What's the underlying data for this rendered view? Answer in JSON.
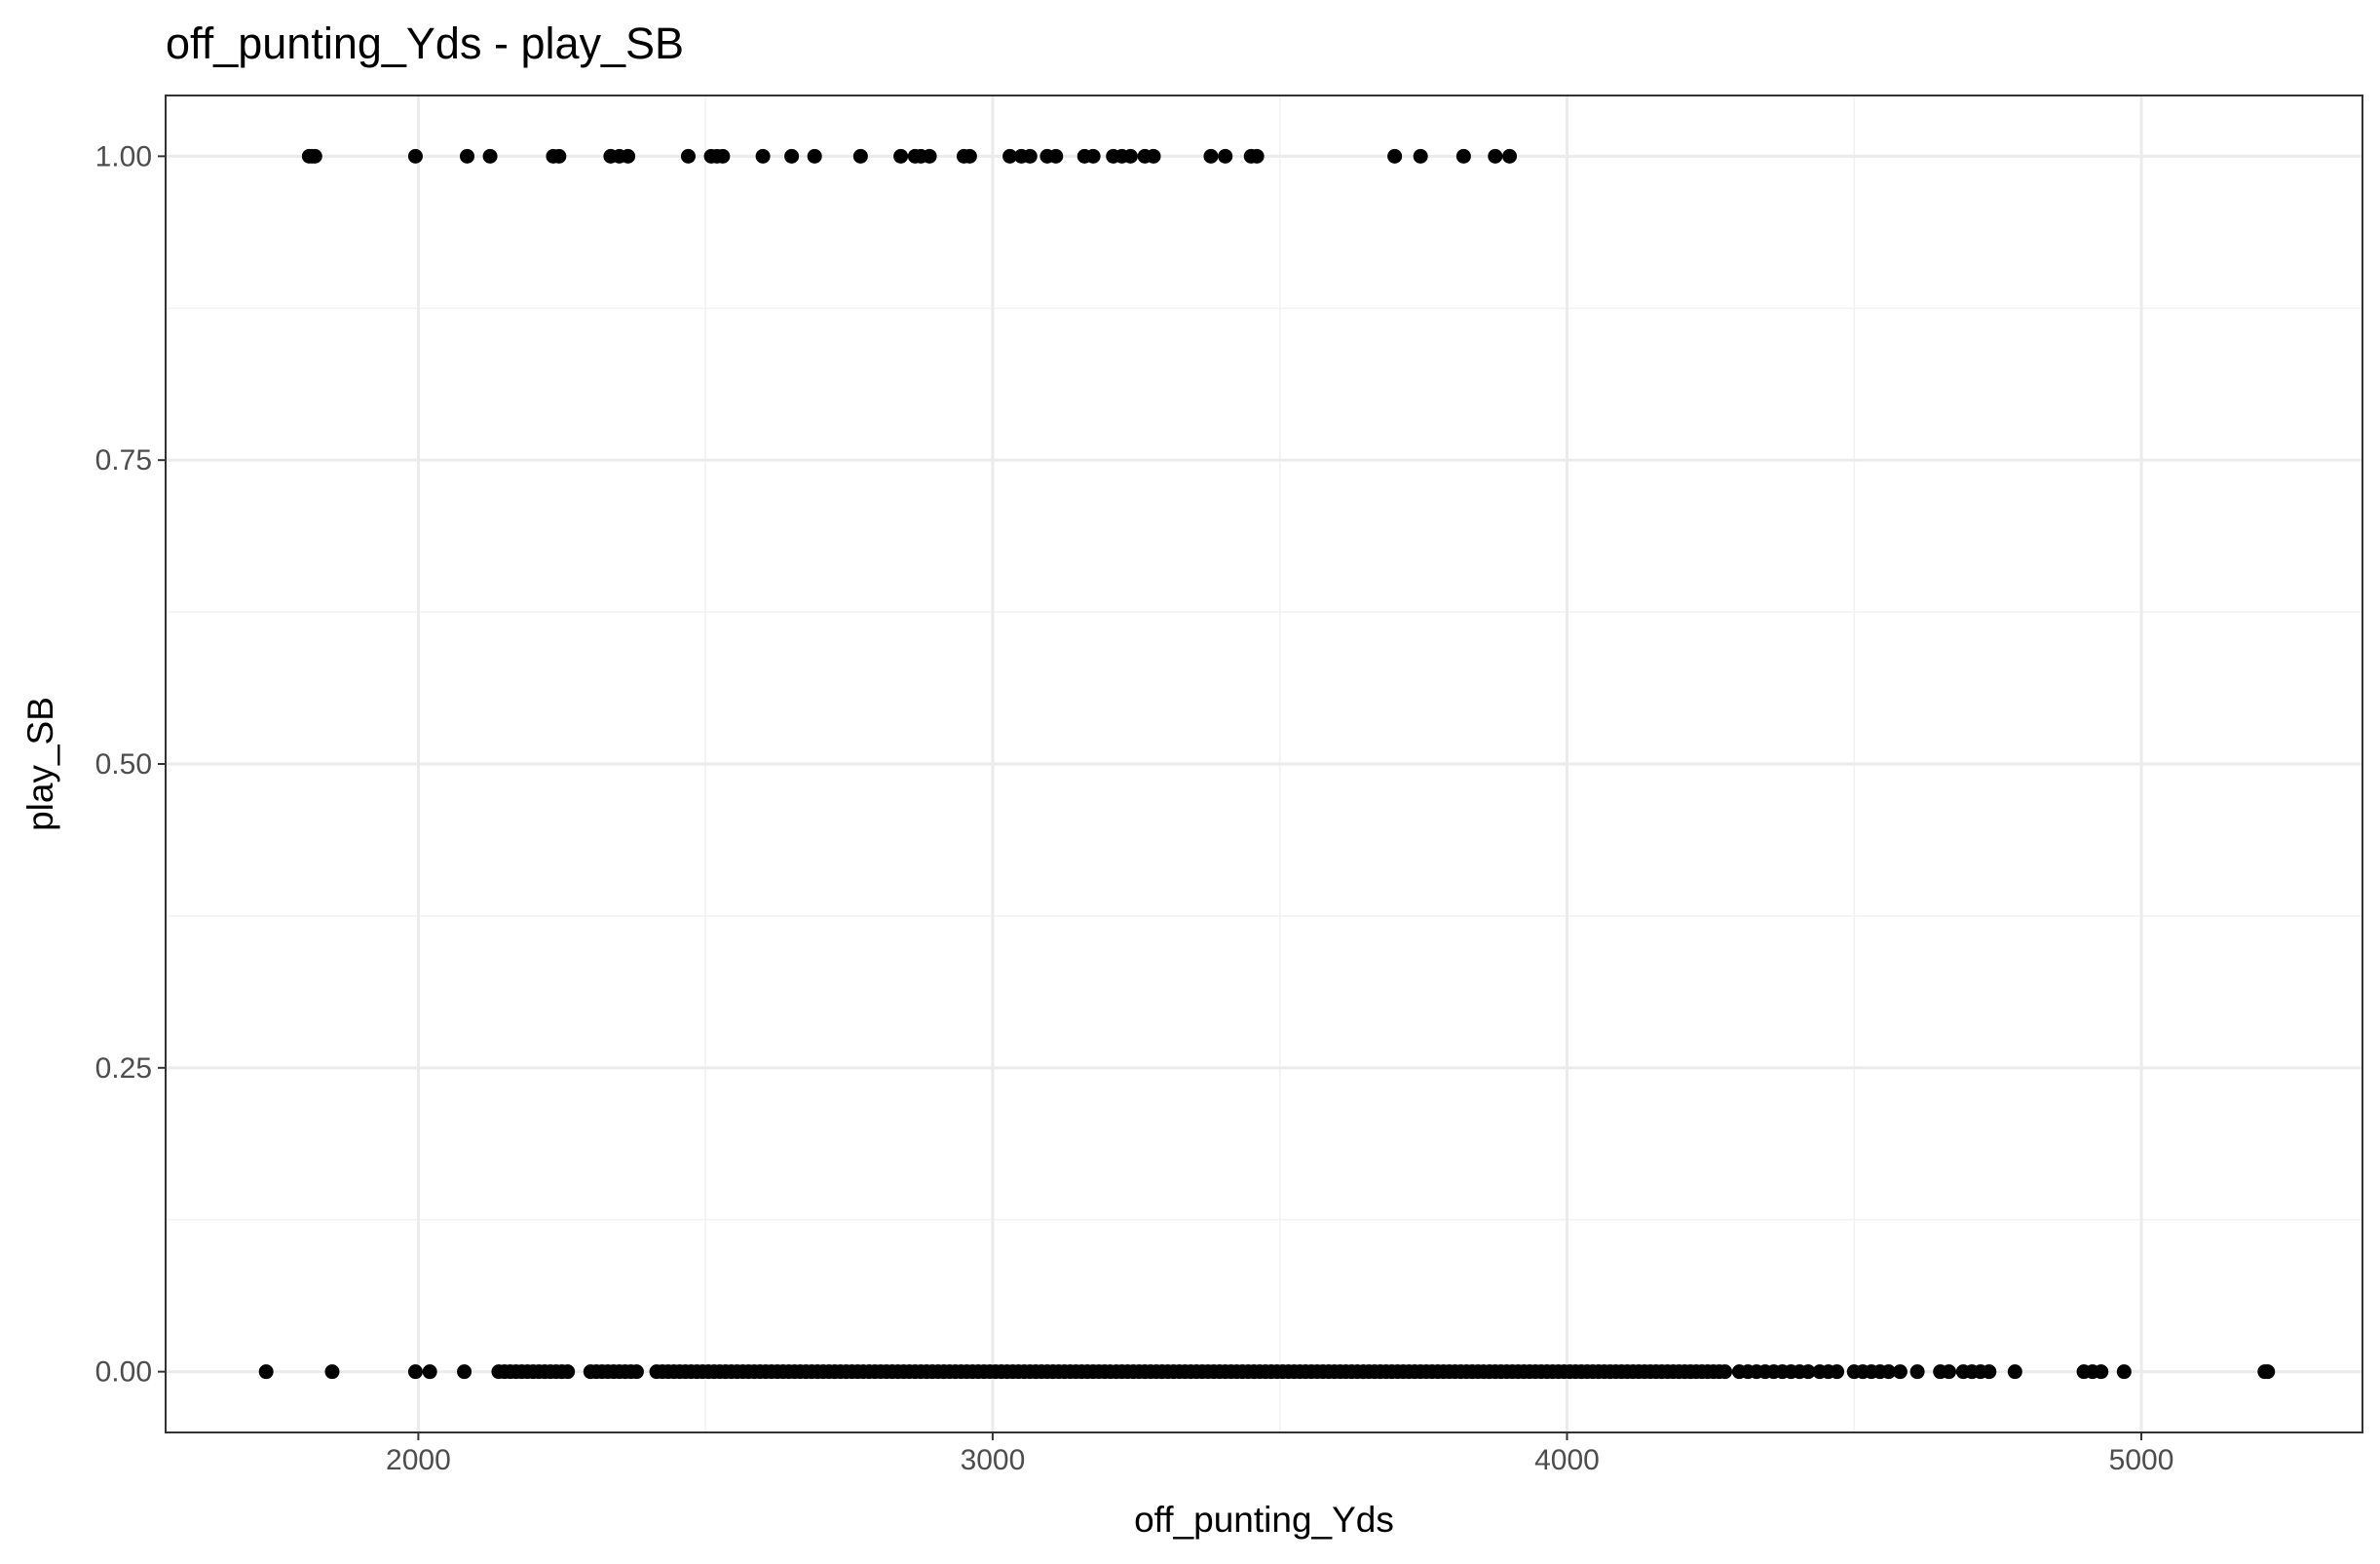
{
  "chart_data": {
    "type": "scatter",
    "title": "off_punting_Yds - play_SB",
    "xlabel": "off_punting_Yds",
    "ylabel": "play_SB",
    "xlim": [
      1560,
      5385
    ],
    "ylim": [
      -0.05,
      1.05
    ],
    "x_ticks": [
      2000,
      3000,
      4000,
      5000
    ],
    "x_tick_labels": [
      "2000",
      "3000",
      "4000",
      "5000"
    ],
    "y_ticks": [
      0,
      0.25,
      0.5,
      0.75,
      1
    ],
    "y_tick_labels": [
      "0.00",
      "0.25",
      "0.50",
      "0.75",
      "1.00"
    ],
    "x_minor_ticks": [
      1500,
      2500,
      3500,
      4500
    ],
    "y_minor_ticks": [
      0.125,
      0.375,
      0.625,
      0.875
    ],
    "grid": true,
    "point_color": "#000000",
    "series": [
      {
        "y": 1,
        "x": [
          1810,
          1815,
          1820,
          1995,
          2085,
          2125,
          2235,
          2245,
          2335,
          2350,
          2365,
          2470,
          2510,
          2520,
          2530,
          2600,
          2650,
          2690,
          2770,
          2840,
          2865,
          2875,
          2890,
          2950,
          2960,
          3030,
          3050,
          3065,
          3095,
          3110,
          3160,
          3175,
          3210,
          3225,
          3240,
          3265,
          3280,
          3380,
          3405,
          3450,
          3460,
          3700,
          3745,
          3820,
          3875,
          3900
        ]
      },
      {
        "y": 0,
        "x": [
          1735,
          1850,
          1995,
          2020,
          2080,
          2140,
          2150,
          2160,
          2170,
          2180,
          2190,
          2200,
          2210,
          2220,
          2230,
          2240,
          2250,
          2260,
          2300,
          2310,
          2320,
          2330,
          2340,
          2350,
          2360,
          2370,
          2380,
          2415,
          2425,
          2435,
          2445,
          2455,
          2465,
          2475,
          2485,
          2495,
          2505,
          2515,
          2525,
          2535,
          2545,
          2555,
          2565,
          2575,
          2585,
          2595,
          2605,
          2615,
          2625,
          2635,
          2645,
          2655,
          2665,
          2675,
          2685,
          2695,
          2705,
          2715,
          2725,
          2735,
          2745,
          2755,
          2765,
          2775,
          2785,
          2795,
          2805,
          2815,
          2825,
          2835,
          2845,
          2855,
          2865,
          2875,
          2885,
          2895,
          2905,
          2915,
          2925,
          2935,
          2945,
          2955,
          2965,
          2975,
          2985,
          2995,
          3005,
          3015,
          3025,
          3035,
          3045,
          3055,
          3065,
          3075,
          3085,
          3095,
          3105,
          3115,
          3125,
          3135,
          3145,
          3155,
          3165,
          3175,
          3185,
          3195,
          3205,
          3215,
          3225,
          3235,
          3245,
          3255,
          3265,
          3275,
          3285,
          3295,
          3305,
          3315,
          3325,
          3335,
          3345,
          3355,
          3365,
          3375,
          3385,
          3395,
          3405,
          3415,
          3425,
          3435,
          3445,
          3455,
          3465,
          3475,
          3485,
          3495,
          3505,
          3515,
          3525,
          3535,
          3545,
          3555,
          3565,
          3575,
          3585,
          3595,
          3605,
          3615,
          3625,
          3635,
          3645,
          3655,
          3665,
          3675,
          3685,
          3695,
          3705,
          3715,
          3725,
          3735,
          3745,
          3755,
          3765,
          3775,
          3785,
          3795,
          3805,
          3815,
          3825,
          3835,
          3845,
          3855,
          3865,
          3875,
          3885,
          3895,
          3905,
          3915,
          3925,
          3935,
          3945,
          3955,
          3965,
          3975,
          3985,
          3995,
          4005,
          4015,
          4025,
          4035,
          4045,
          4055,
          4065,
          4075,
          4085,
          4095,
          4105,
          4115,
          4125,
          4135,
          4145,
          4155,
          4165,
          4175,
          4185,
          4195,
          4205,
          4215,
          4225,
          4235,
          4245,
          4255,
          4265,
          4275,
          4300,
          4315,
          4330,
          4345,
          4360,
          4375,
          4390,
          4405,
          4420,
          4440,
          4455,
          4470,
          4500,
          4515,
          4530,
          4545,
          4560,
          4580,
          4610,
          4650,
          4665,
          4690,
          4705,
          4720,
          4735,
          4780,
          4900,
          4915,
          4930,
          4970,
          5215,
          5220
        ]
      }
    ]
  }
}
